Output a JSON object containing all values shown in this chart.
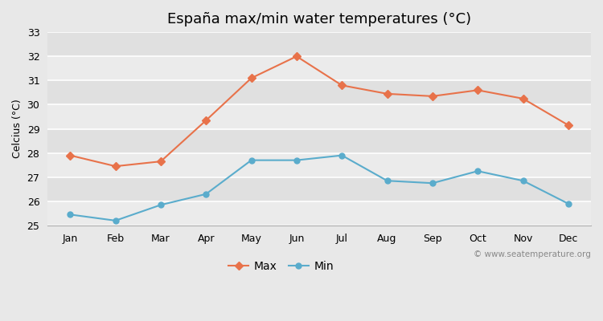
{
  "title": "España max/min water temperatures (°C)",
  "months": [
    "Jan",
    "Feb",
    "Mar",
    "Apr",
    "May",
    "Jun",
    "Jul",
    "Aug",
    "Sep",
    "Oct",
    "Nov",
    "Dec"
  ],
  "max_values": [
    27.9,
    27.45,
    27.65,
    29.35,
    31.1,
    32.0,
    30.8,
    30.45,
    30.35,
    30.6,
    30.25,
    29.15
  ],
  "min_values": [
    25.45,
    25.2,
    25.85,
    26.3,
    27.7,
    27.7,
    27.9,
    26.85,
    26.75,
    27.25,
    26.85,
    25.9
  ],
  "max_color": "#e8724a",
  "min_color": "#5aaccc",
  "background_color": "#e8e8e8",
  "band_colors": [
    "#ebebeb",
    "#e0e0e0"
  ],
  "ylabel": "Celcius (°C)",
  "ylim": [
    25,
    33
  ],
  "yticks": [
    25,
    26,
    27,
    28,
    29,
    30,
    31,
    32,
    33
  ],
  "watermark": "© www.seatemperature.org",
  "legend_max": "Max",
  "legend_min": "Min",
  "title_fontsize": 13,
  "label_fontsize": 9,
  "tick_fontsize": 9,
  "watermark_fontsize": 7.5
}
